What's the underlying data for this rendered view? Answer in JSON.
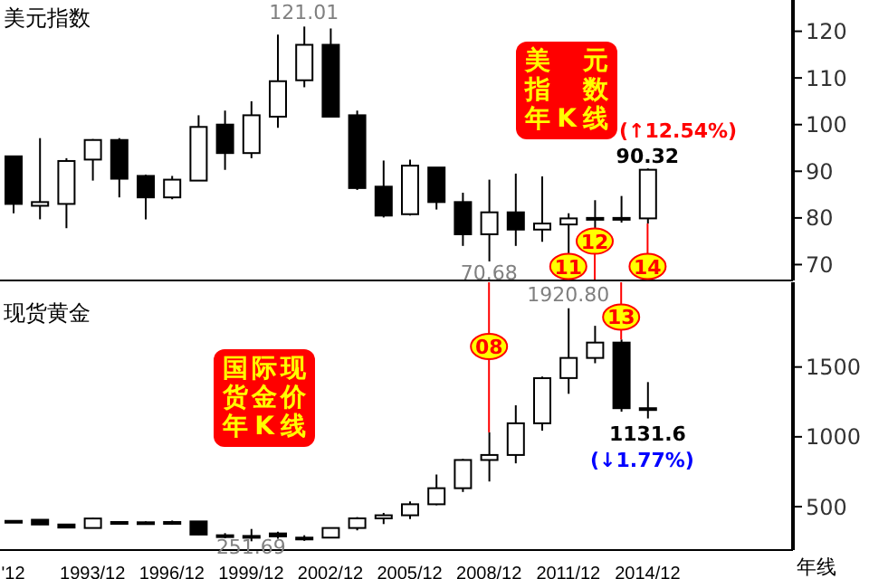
{
  "chart_data": [
    {
      "type": "candlestick",
      "title": "美元指数",
      "categories": [
        null,
        null,
        null,
        null,
        null,
        null,
        null,
        null,
        null,
        null,
        null,
        null,
        null,
        null,
        null,
        null,
        null,
        null,
        null,
        null,
        null,
        null,
        null,
        null,
        null,
        null,
        null,
        null,
        null,
        null
      ],
      "ohlc": [
        [
          93.2,
          93.2,
          81.0,
          83.0
        ],
        [
          82.6,
          97.1,
          79.7,
          83.4
        ],
        [
          83.0,
          92.8,
          77.8,
          92.2
        ],
        [
          92.5,
          96.9,
          88.0,
          96.7
        ],
        [
          96.7,
          97.1,
          84.4,
          88.4
        ],
        [
          89.0,
          89.3,
          79.7,
          84.4
        ],
        [
          84.4,
          89.0,
          84.0,
          88.2
        ],
        [
          88.0,
          102.0,
          88.0,
          99.5
        ],
        [
          100.0,
          103.0,
          90.3,
          93.9
        ],
        [
          93.9,
          105.0,
          92.8,
          102.0
        ],
        [
          101.7,
          119.3,
          99.3,
          109.3
        ],
        [
          109.5,
          121.01,
          108.0,
          117.1
        ],
        [
          117.1,
          120.6,
          101.7,
          101.7
        ],
        [
          102.0,
          103.0,
          86.0,
          86.4
        ],
        [
          86.7,
          92.3,
          80.1,
          80.5
        ],
        [
          80.8,
          92.5,
          80.5,
          91.2
        ],
        [
          90.8,
          90.8,
          81.8,
          83.4
        ],
        [
          83.4,
          85.4,
          74.0,
          76.5
        ],
        [
          76.5,
          88.2,
          70.68,
          81.2
        ],
        [
          81.2,
          89.5,
          74.0,
          77.5
        ],
        [
          77.5,
          88.9,
          74.9,
          78.8
        ],
        [
          78.6,
          81.0,
          72.3,
          79.9
        ],
        [
          80.0,
          83.8,
          77.5,
          79.7
        ],
        [
          79.7,
          84.7,
          79.0,
          80.0
        ],
        [
          79.9,
          90.6,
          78.8,
          90.32
        ],
        null,
        null,
        null,
        null,
        null
      ],
      "ylim": [
        66.6,
        126.7
      ],
      "yticks": [
        70,
        80,
        90,
        100,
        110,
        120
      ],
      "tick_labels": "y",
      "annotations": [
        "121.01",
        "70.68",
        "90.32",
        "美元指数年K线",
        "(↑12.54%)",
        "11",
        "12",
        "14"
      ]
    },
    {
      "type": "candlestick",
      "title": "现货黄金",
      "xlabel": "年线",
      "categories": [
        "'12",
        null,
        null,
        "1993/12",
        null,
        null,
        "1996/12",
        null,
        null,
        "1999/12",
        null,
        null,
        "2002/12",
        null,
        null,
        "2005/12",
        null,
        null,
        "2008/12",
        null,
        null,
        "2011/12",
        null,
        null,
        "2014/12",
        null,
        null,
        null,
        null,
        null
      ],
      "ohlc": [
        [
          390,
          402,
          386,
          398
        ],
        [
          406,
          408,
          370,
          372
        ],
        [
          372,
          375,
          345,
          350
        ],
        [
          347,
          420,
          345,
          415
        ],
        [
          390,
          395,
          380,
          385
        ],
        [
          385,
          395,
          380,
          388
        ],
        [
          378,
          400,
          370,
          390
        ],
        [
          394,
          396,
          298,
          300
        ],
        [
          295,
          310,
          273,
          290
        ],
        [
          290,
          340,
          251.69,
          288
        ],
        [
          308,
          320,
          270,
          287
        ],
        [
          272,
          295,
          255,
          278
        ],
        [
          278,
          350,
          277,
          347
        ],
        [
          347,
          425,
          330,
          416
        ],
        [
          416,
          455,
          375,
          438
        ],
        [
          438,
          538,
          411,
          517
        ],
        [
          517,
          730,
          510,
          632
        ],
        [
          632,
          842,
          605,
          834
        ],
        [
          834,
          1032,
          680,
          870
        ],
        [
          870,
          1226,
          810,
          1097
        ],
        [
          1097,
          1431,
          1045,
          1420
        ],
        [
          1421,
          1920.8,
          1308,
          1565
        ],
        [
          1565,
          1795,
          1527,
          1675
        ],
        [
          1675,
          1697,
          1180,
          1205
        ],
        [
          1205,
          1392,
          1131.6,
          1199
        ],
        null,
        null,
        null,
        null,
        null
      ],
      "ylim": [
        189,
        2107
      ],
      "yticks": [
        500,
        1000,
        1500
      ],
      "annotations": [
        "1920.80",
        "251.69",
        "1131.6",
        "国际现货金价年K线",
        "(↓1.77%)",
        "08",
        "13"
      ]
    }
  ]
}
